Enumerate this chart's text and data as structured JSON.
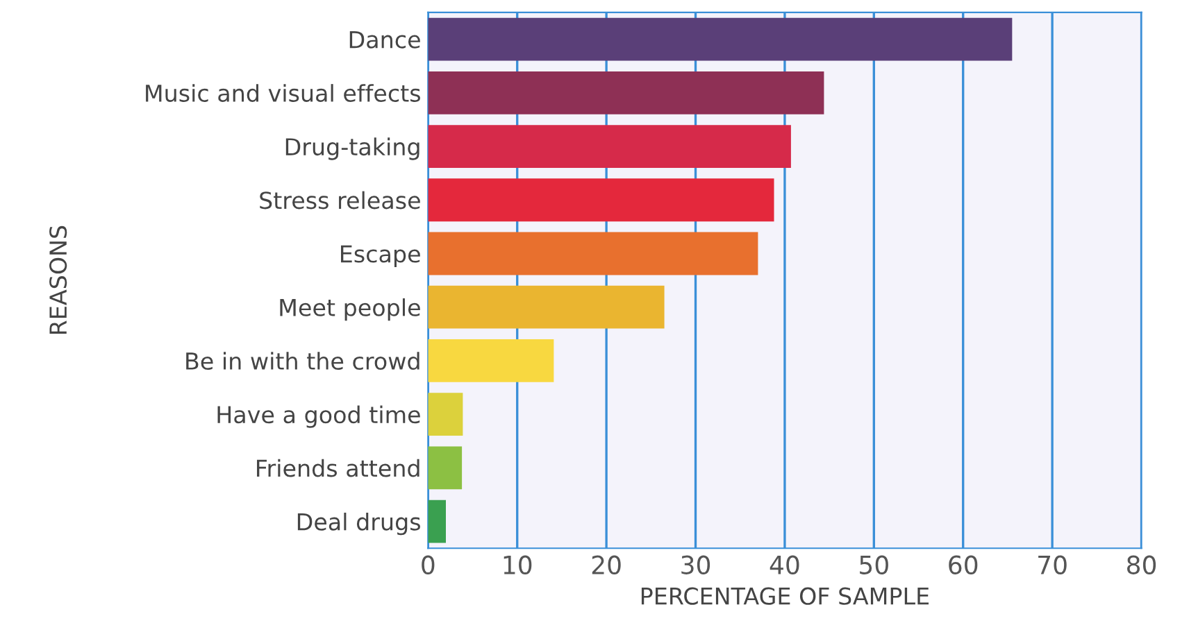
{
  "chart_data": {
    "type": "bar",
    "orientation": "horizontal",
    "xlabel": "PERCENTAGE OF SAMPLE",
    "ylabel": "REASONS",
    "categories": [
      "Dance",
      "Music and visual effects",
      "Drug-taking",
      "Stress release",
      "Escape",
      "Meet people",
      "Be in with the crowd",
      "Have a good time",
      "Friends attend",
      "Deal drugs"
    ],
    "values": [
      65.5,
      44.4,
      40.7,
      38.8,
      37.0,
      26.5,
      14.1,
      3.9,
      3.8,
      2.0
    ],
    "colors": [
      "#5a3f78",
      "#8e3055",
      "#d62a4a",
      "#e4283c",
      "#e8702e",
      "#eab530",
      "#f8d840",
      "#dcd13c",
      "#8cc043",
      "#3aa050"
    ],
    "xlim": [
      0,
      80
    ],
    "xticks": [
      0,
      10,
      20,
      30,
      40,
      50,
      60,
      70,
      80
    ],
    "grid": "x"
  }
}
